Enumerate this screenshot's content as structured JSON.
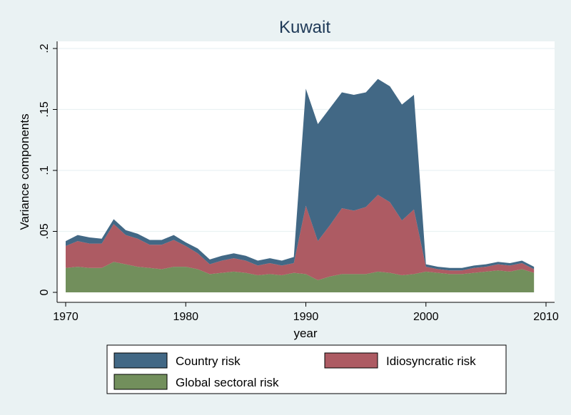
{
  "chart_data": {
    "type": "area",
    "stacked": true,
    "title": "Kuwait",
    "xlabel": "year",
    "ylabel": "Variance components",
    "xlim": [
      1970,
      2010
    ],
    "ylim": [
      0,
      0.2
    ],
    "x_ticks": [
      {
        "value": 1970,
        "label": "1970"
      },
      {
        "value": 1980,
        "label": "1980"
      },
      {
        "value": 1990,
        "label": "1990"
      },
      {
        "value": 2000,
        "label": "2000"
      },
      {
        "value": 2010,
        "label": "2010"
      }
    ],
    "y_ticks": [
      {
        "value": 0,
        "label": "0"
      },
      {
        "value": 0.05,
        "label": ".05"
      },
      {
        "value": 0.1,
        "label": ".1"
      },
      {
        "value": 0.15,
        "label": ".15"
      },
      {
        "value": 0.2,
        "label": ".2"
      }
    ],
    "grid": true,
    "legend_position": "bottom",
    "x": [
      1970,
      1971,
      1972,
      1973,
      1974,
      1975,
      1976,
      1977,
      1978,
      1979,
      1980,
      1981,
      1982,
      1983,
      1984,
      1985,
      1986,
      1987,
      1988,
      1989,
      1990,
      1991,
      1992,
      1993,
      1994,
      1995,
      1996,
      1997,
      1998,
      1999,
      2000,
      2001,
      2002,
      2003,
      2004,
      2005,
      2006,
      2007,
      2008,
      2009
    ],
    "series": [
      {
        "name": "Global sectoral risk",
        "color": "#728f5c",
        "values": [
          0.02,
          0.021,
          0.02,
          0.02,
          0.025,
          0.023,
          0.021,
          0.02,
          0.019,
          0.021,
          0.021,
          0.019,
          0.015,
          0.016,
          0.017,
          0.016,
          0.014,
          0.015,
          0.014,
          0.016,
          0.015,
          0.01,
          0.013,
          0.015,
          0.015,
          0.015,
          0.017,
          0.016,
          0.014,
          0.015,
          0.017,
          0.016,
          0.015,
          0.015,
          0.016,
          0.017,
          0.018,
          0.017,
          0.019,
          0.016
        ]
      },
      {
        "name": "Idiosyncratic risk",
        "color": "#ad5b63",
        "values": [
          0.018,
          0.021,
          0.02,
          0.02,
          0.031,
          0.024,
          0.023,
          0.019,
          0.02,
          0.022,
          0.017,
          0.013,
          0.008,
          0.01,
          0.011,
          0.01,
          0.008,
          0.009,
          0.008,
          0.008,
          0.056,
          0.032,
          0.042,
          0.054,
          0.052,
          0.055,
          0.063,
          0.058,
          0.045,
          0.053,
          0.004,
          0.003,
          0.003,
          0.003,
          0.004,
          0.004,
          0.005,
          0.005,
          0.005,
          0.003
        ]
      },
      {
        "name": "Country risk",
        "color": "#426885",
        "values": [
          0.004,
          0.005,
          0.005,
          0.004,
          0.004,
          0.004,
          0.004,
          0.004,
          0.004,
          0.004,
          0.003,
          0.004,
          0.004,
          0.004,
          0.004,
          0.004,
          0.004,
          0.004,
          0.004,
          0.005,
          0.096,
          0.096,
          0.096,
          0.095,
          0.095,
          0.094,
          0.095,
          0.095,
          0.095,
          0.094,
          0.002,
          0.002,
          0.002,
          0.002,
          0.002,
          0.002,
          0.002,
          0.002,
          0.002,
          0.002
        ]
      }
    ],
    "legend_order": [
      "Country risk",
      "Idiosyncratic risk",
      "Global sectoral risk"
    ],
    "colors": {
      "background": "#eaf2f3",
      "plot_background": "#ffffff",
      "title": "#1e3957",
      "gridline": "#eaf2f3"
    }
  }
}
